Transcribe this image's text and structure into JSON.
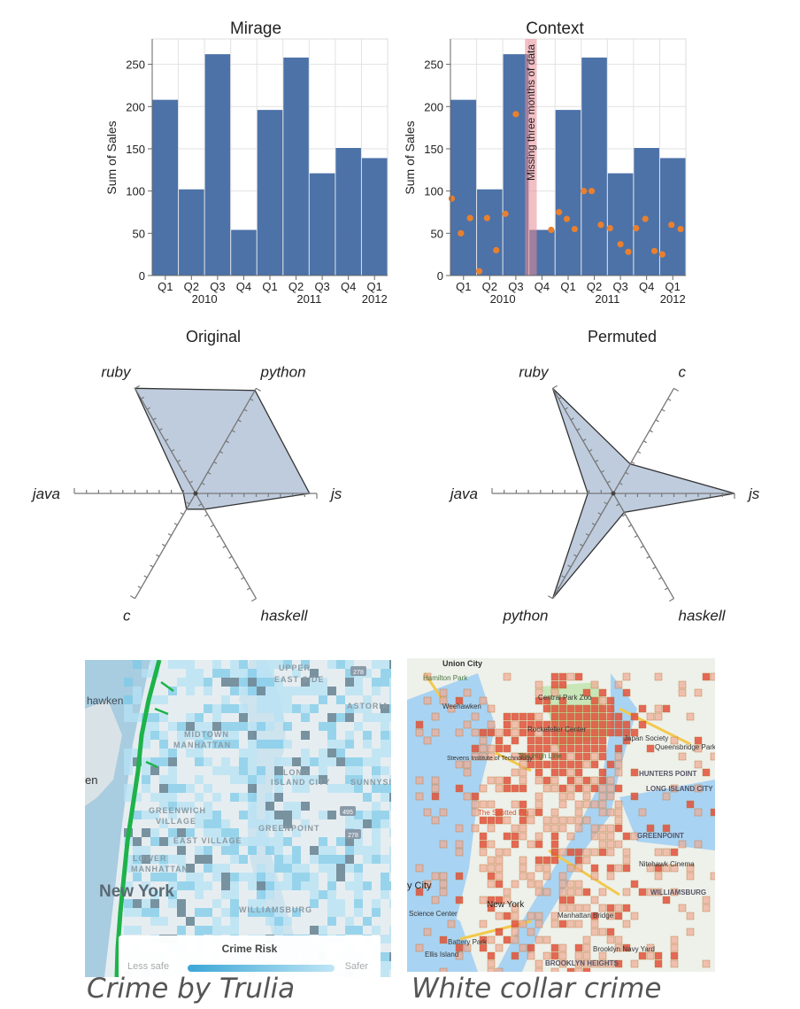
{
  "chart_data": [
    {
      "id": "mirage",
      "type": "bar",
      "title": "Mirage",
      "ylabel": "Sum of Sales",
      "ylim": [
        0,
        280
      ],
      "yticks": [
        0,
        50,
        100,
        150,
        200,
        250
      ],
      "categories": [
        "Q1",
        "Q2",
        "Q3",
        "Q4",
        "Q1",
        "Q2",
        "Q3",
        "Q4",
        "Q1"
      ],
      "years": [
        {
          "label": "2010",
          "at": 1.5
        },
        {
          "label": "2011",
          "at": 5.5
        },
        {
          "label": "2012",
          "at": 8
        }
      ],
      "values": [
        208,
        102,
        262,
        54,
        196,
        258,
        121,
        151,
        139
      ]
    },
    {
      "id": "context",
      "type": "bar",
      "title": "Context",
      "ylabel": "Sum of Sales",
      "ylim": [
        0,
        280
      ],
      "yticks": [
        0,
        50,
        100,
        150,
        200,
        250
      ],
      "categories": [
        "Q1",
        "Q2",
        "Q3",
        "Q4",
        "Q1",
        "Q2",
        "Q3",
        "Q4",
        "Q1"
      ],
      "years": [
        {
          "label": "2010",
          "at": 1.5
        },
        {
          "label": "2011",
          "at": 5.5
        },
        {
          "label": "2012",
          "at": 8
        }
      ],
      "values": [
        208,
        102,
        262,
        54,
        196,
        258,
        121,
        151,
        139
      ],
      "annotation": {
        "text": "Missing three months of data",
        "from": 2.85,
        "to": 3.3
      },
      "points": [
        [
          0.05,
          91
        ],
        [
          0.4,
          50
        ],
        [
          0.75,
          68
        ],
        [
          1.1,
          5
        ],
        [
          1.4,
          68
        ],
        [
          1.75,
          30
        ],
        [
          2.1,
          73
        ],
        [
          2.5,
          191
        ],
        [
          3.85,
          54
        ],
        [
          4.15,
          75
        ],
        [
          4.45,
          67
        ],
        [
          4.75,
          55
        ],
        [
          5.1,
          100
        ],
        [
          5.4,
          100
        ],
        [
          5.75,
          60
        ],
        [
          6.1,
          56
        ],
        [
          6.5,
          37
        ],
        [
          6.8,
          28
        ],
        [
          7.1,
          56
        ],
        [
          7.45,
          67
        ],
        [
          7.8,
          29
        ],
        [
          8.1,
          25
        ],
        [
          8.45,
          60
        ],
        [
          8.8,
          55
        ]
      ]
    },
    {
      "id": "original",
      "type": "radar",
      "title": "Original",
      "axes": [
        "python",
        "js",
        "haskell",
        "c",
        "java",
        "ruby"
      ],
      "max": 10,
      "values": [
        9.8,
        9.4,
        1.5,
        1.5,
        1.0,
        10
      ]
    },
    {
      "id": "permuted",
      "type": "radar",
      "title": "Permuted",
      "axes": [
        "c",
        "js",
        "haskell",
        "python",
        "java",
        "ruby"
      ],
      "max": 10,
      "values": [
        2.8,
        10,
        1.8,
        10,
        2.1,
        10
      ]
    }
  ],
  "maps": {
    "left": {
      "title": "Crime by Trulia",
      "legend": {
        "title": "Crime Risk",
        "left": "Less safe",
        "right": "Safer"
      },
      "labels": [
        "hawken",
        "UPPER",
        "EAST SIDE",
        "ASTORIA",
        "MIDTOWN",
        "MANHATTAN",
        "LONG",
        "ISLAND CITY",
        "SUNNYSIDE",
        "GREENWICH",
        "VILLAGE",
        "EAST VILLAGE",
        "LOWER",
        "MANHATTAN",
        "GREENPOINT",
        "New York",
        "WILLIAMSBURG",
        "en"
      ],
      "shields": [
        "278",
        "495",
        "278"
      ]
    },
    "right": {
      "title": "White collar crime",
      "labels": [
        "Union City",
        "Hamilton Park",
        "Weehawken",
        "Central Park Zoo",
        "Rockefeller Center",
        "Stevens Institute of Technology",
        "The High Line",
        "Queensbridge Park",
        "Japan Society",
        "HUNTERS POINT",
        "LONG ISLAND CITY",
        "The Spotted Pig",
        "New York",
        "Manhattan Bridge",
        "Battery Park",
        "Ellis Island",
        "Brooklyn Navy Yard",
        "WILLIAMSBURG",
        "GREENPOINT",
        "Nitehawk Cinema",
        "BROOKLYN HEIGHTS",
        "y City",
        "Science Center"
      ]
    }
  }
}
